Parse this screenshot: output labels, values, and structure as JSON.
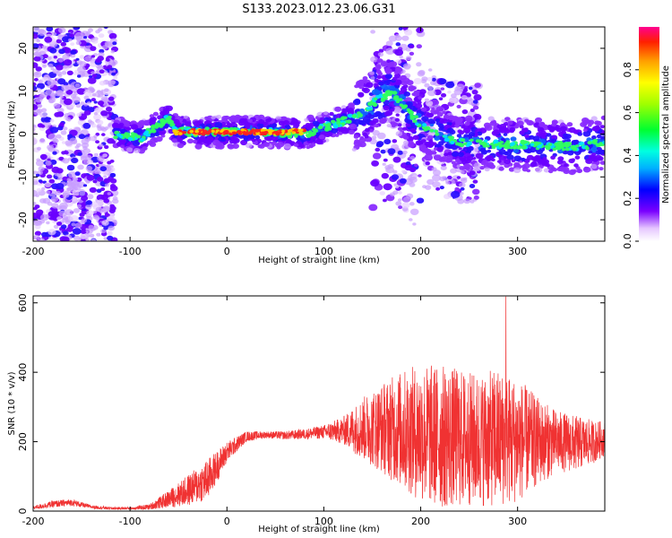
{
  "figure": {
    "title": "S133.2023.012.23.06.G31"
  },
  "colors": {
    "snr_line": "#f03232",
    "frame": "#000000"
  },
  "chart_data": [
    {
      "type": "heatmap",
      "xlabel": "Height of straight line (km)",
      "ylabel": "Frequency (Hz)",
      "xlim": [
        -200,
        390
      ],
      "ylim": [
        -25,
        25
      ],
      "xticks": [
        -200,
        -100,
        0,
        100,
        200,
        300
      ],
      "yticks": [
        -20,
        -10,
        0,
        10,
        20
      ],
      "grid": false,
      "colorbar": {
        "label": "Normalized spectral amplitude",
        "range": [
          0,
          1
        ],
        "ticks": [
          "0.0",
          "0.2",
          "0.4",
          "0.6",
          "0.8"
        ],
        "colormap": "rainbow"
      },
      "ridge": {
        "x": [
          -110,
          -90,
          -70,
          -60,
          -55,
          -40,
          0,
          40,
          80,
          120,
          140,
          150,
          170,
          200,
          240,
          300,
          360,
          390
        ],
        "y": [
          0,
          -1,
          2,
          4,
          1,
          0.5,
          0.5,
          0.5,
          0,
          3,
          5,
          7,
          10,
          2,
          -2,
          -2.5,
          -3,
          -2
        ]
      },
      "high_amplitude_span": {
        "x_start": -55,
        "x_end": 80,
        "frequency_hz": 0.5
      }
    },
    {
      "type": "line",
      "xlabel": "Height of straight line (km)",
      "ylabel": "SNR (10 * v/v)",
      "xlim": [
        -200,
        390
      ],
      "ylim": [
        0,
        620
      ],
      "xticks": [
        -200,
        -100,
        0,
        100,
        200,
        300
      ],
      "yticks": [
        0,
        200,
        400,
        600
      ],
      "grid": false,
      "series": [
        {
          "x": [
            -200,
            -180,
            -160,
            -140,
            -120,
            -100,
            -80,
            -60,
            -40,
            -20,
            0,
            20,
            40,
            60,
            80,
            100,
            120,
            140,
            160,
            180,
            200,
            220,
            240,
            260,
            280,
            300,
            320,
            340,
            360,
            380,
            390
          ],
          "mean": [
            10,
            20,
            25,
            12,
            8,
            8,
            12,
            35,
            60,
            90,
            170,
            215,
            220,
            218,
            222,
            228,
            232,
            238,
            240,
            235,
            225,
            215,
            210,
            205,
            210,
            205,
            200,
            200,
            195,
            200,
            210
          ],
          "spread": [
            5,
            10,
            10,
            5,
            4,
            4,
            8,
            25,
            45,
            60,
            30,
            15,
            10,
            12,
            15,
            20,
            40,
            90,
            130,
            170,
            200,
            210,
            200,
            190,
            200,
            180,
            130,
            90,
            80,
            60,
            50
          ],
          "peak": {
            "x": 288,
            "y": 618
          }
        }
      ]
    }
  ]
}
